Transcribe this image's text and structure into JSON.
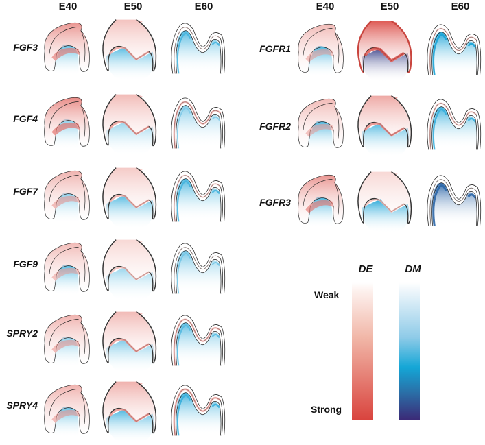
{
  "figure": {
    "left_panel": {
      "columns": [
        "E40",
        "E50",
        "E60"
      ],
      "rows": [
        {
          "gene": "FGF3",
          "E40": {
            "de": 0.7,
            "dm": 0.5
          },
          "E50": {
            "de": 0.45,
            "dm": 0.55
          },
          "E60": {
            "de": 0.15,
            "dm": 0.55
          }
        },
        {
          "gene": "FGF4",
          "E40": {
            "de": 0.75,
            "dm": 0.35
          },
          "E50": {
            "de": 0.5,
            "dm": 0.3
          },
          "E60": {
            "de": 0.5,
            "dm": 0.35
          }
        },
        {
          "gene": "FGF7",
          "E40": {
            "de": 0.55,
            "dm": 0.35
          },
          "E50": {
            "de": 0.4,
            "dm": 0.55
          },
          "E60": {
            "de": 0.35,
            "dm": 0.55
          }
        },
        {
          "gene": "FGF9",
          "E40": {
            "de": 0.5,
            "dm": 0.55
          },
          "E50": {
            "de": 0.3,
            "dm": 0.3
          },
          "E60": {
            "de": 0.1,
            "dm": 0.4
          }
        },
        {
          "gene": "SPRY2",
          "E40": {
            "de": 0.55,
            "dm": 0.35
          },
          "E50": {
            "de": 0.5,
            "dm": 0.4
          },
          "E60": {
            "de": 0.5,
            "dm": 0.5
          }
        },
        {
          "gene": "SPRY4",
          "E40": {
            "de": 0.55,
            "dm": 0.5
          },
          "E50": {
            "de": 0.55,
            "dm": 0.6
          },
          "E60": {
            "de": 0.55,
            "dm": 0.6
          }
        }
      ]
    },
    "right_panel": {
      "columns": [
        "E40",
        "E50",
        "E60"
      ],
      "rows": [
        {
          "gene": "FGFR1",
          "E40": {
            "de": 0.5,
            "dm": 0.6
          },
          "E50": {
            "de": 0.95,
            "dm": 0.95
          },
          "E60": {
            "de": 0.35,
            "dm": 0.7
          }
        },
        {
          "gene": "FGFR2",
          "E40": {
            "de": 0.5,
            "dm": 0.6
          },
          "E50": {
            "de": 0.6,
            "dm": 0.55
          },
          "E60": {
            "de": 0.4,
            "dm": 0.6
          }
        },
        {
          "gene": "FGFR3",
          "E40": {
            "de": 0.7,
            "dm": 0.6
          },
          "E50": {
            "de": 0.3,
            "dm": 0.7
          },
          "E60": {
            "de": 0.05,
            "dm": 0.85
          }
        }
      ]
    },
    "legend": {
      "de_title": "DE",
      "dm_title": "DM",
      "weak_label": "Weak",
      "strong_label": "Strong",
      "de_colors": {
        "weak": "#fdf1ee",
        "strong": "#d9443e"
      },
      "dm_colors": {
        "weak": "#eef6fb",
        "mid": "#14a6d6",
        "strong": "#3b2a77"
      }
    }
  }
}
